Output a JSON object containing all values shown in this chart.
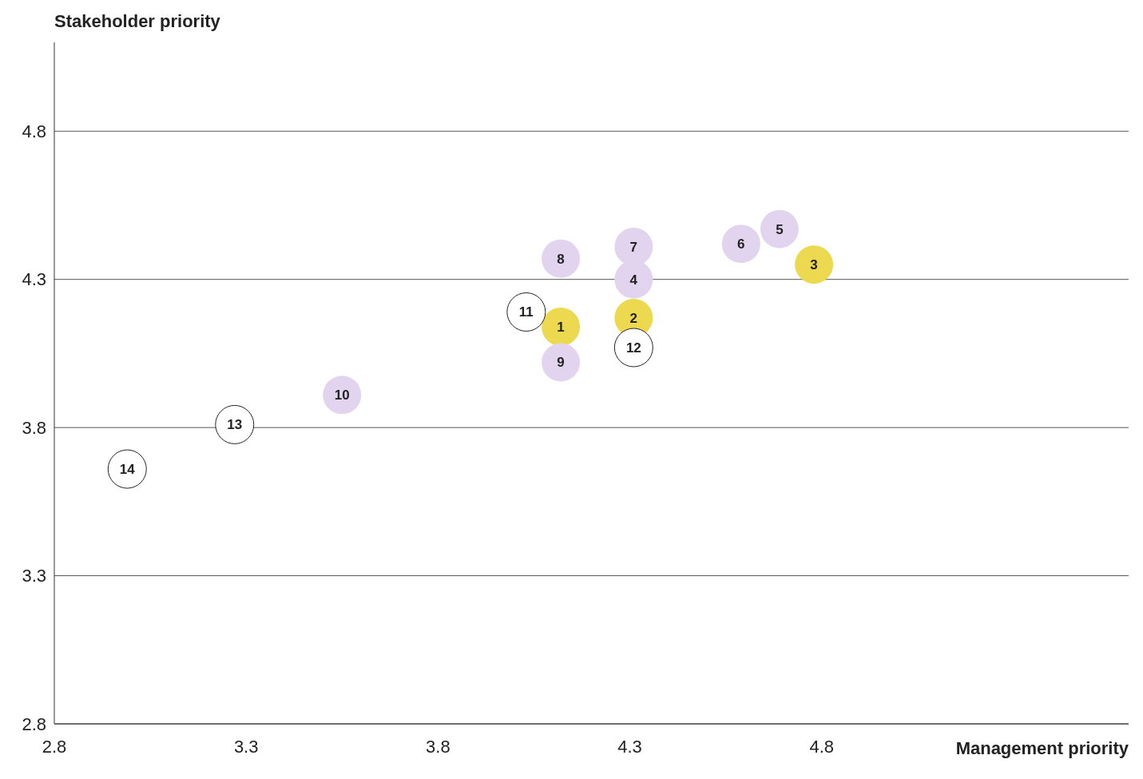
{
  "chart_data": {
    "type": "scatter",
    "xlabel": "Management priority",
    "ylabel": "Stakeholder priority",
    "xlim": [
      2.8,
      5.6
    ],
    "xticks": [
      2.8,
      3.3,
      3.8,
      4.3,
      4.8
    ],
    "ylim": [
      2.8,
      5.1
    ],
    "yticks": [
      2.8,
      3.3,
      3.8,
      4.3,
      4.8
    ],
    "grid": "y",
    "marker": "circle",
    "series": [
      {
        "color": "#ecd94f",
        "x": [
          4.12,
          4.31,
          4.78
        ],
        "values": [
          4.14,
          4.17,
          4.35
        ]
      },
      {
        "color": "#e2d3ef",
        "x": [
          4.31,
          4.69,
          4.59,
          4.31,
          4.12,
          4.12,
          3.55
        ],
        "values": [
          4.3,
          4.47,
          4.42,
          4.41,
          4.37,
          4.02,
          3.91
        ]
      },
      {
        "color": "#ffffff",
        "x": [
          4.03,
          4.31,
          3.27,
          2.99
        ],
        "values": [
          4.19,
          4.07,
          3.81,
          3.66
        ]
      }
    ],
    "annotations": [
      {
        "text": "1",
        "x": 4.12,
        "y": 4.14
      },
      {
        "text": "2",
        "x": 4.31,
        "y": 4.17
      },
      {
        "text": "3",
        "x": 4.78,
        "y": 4.35
      },
      {
        "text": "4",
        "x": 4.31,
        "y": 4.3
      },
      {
        "text": "5",
        "x": 4.69,
        "y": 4.47
      },
      {
        "text": "6",
        "x": 4.59,
        "y": 4.42
      },
      {
        "text": "7",
        "x": 4.31,
        "y": 4.41
      },
      {
        "text": "8",
        "x": 4.12,
        "y": 4.37
      },
      {
        "text": "9",
        "x": 4.12,
        "y": 4.02
      },
      {
        "text": "10",
        "x": 3.55,
        "y": 3.91
      },
      {
        "text": "11",
        "x": 4.03,
        "y": 4.19
      },
      {
        "text": "12",
        "x": 4.31,
        "y": 4.07
      },
      {
        "text": "13",
        "x": 3.27,
        "y": 3.81
      },
      {
        "text": "14",
        "x": 2.99,
        "y": 3.66
      }
    ]
  }
}
